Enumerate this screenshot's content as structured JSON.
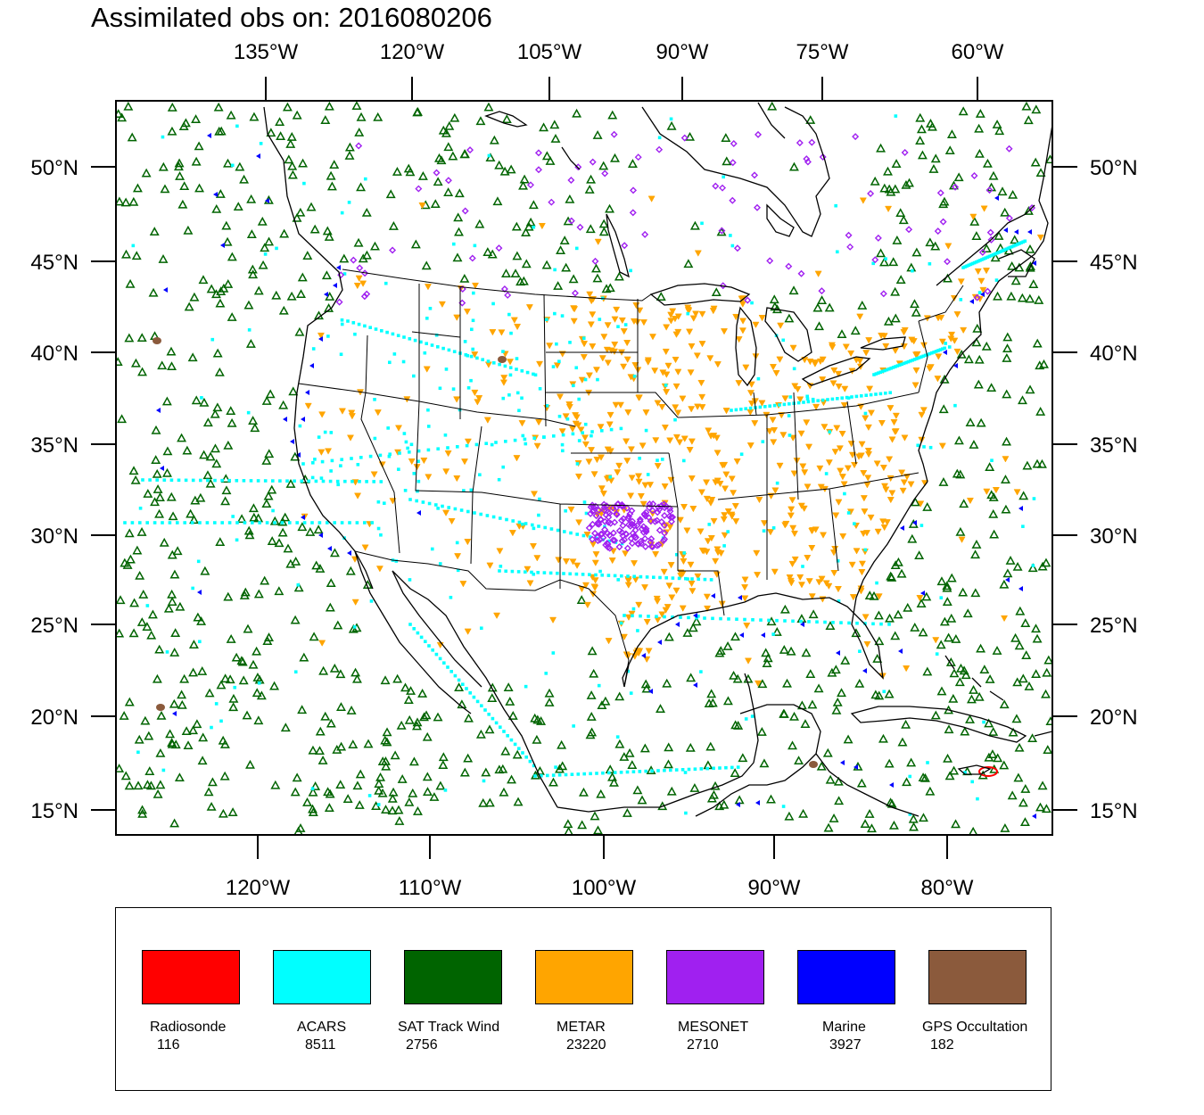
{
  "title": "Assimilated obs on: 2016080206",
  "top_axis_labels": [
    "135°W",
    "120°W",
    "105°W",
    "90°W",
    "75°W",
    "60°W"
  ],
  "bottom_axis_labels": [
    "120°W",
    "110°W",
    "100°W",
    "90°W",
    "80°W"
  ],
  "left_axis_labels": [
    "50°N",
    "45°N",
    "40°N",
    "35°N",
    "30°N",
    "25°N",
    "20°N",
    "15°N"
  ],
  "right_axis_labels": [
    "50°N",
    "45°N",
    "40°N",
    "35°N",
    "30°N",
    "25°N",
    "20°N",
    "15°N"
  ],
  "legend": [
    {
      "name": "Radiosonde",
      "count": "116",
      "color": "#ff0000"
    },
    {
      "name": "ACARS",
      "count": "8511",
      "color": "#00ffff"
    },
    {
      "name": "SAT Track Wind",
      "count": "2756",
      "color": "#006400"
    },
    {
      "name": "METAR",
      "count": "23220",
      "color": "#ffa500"
    },
    {
      "name": "MESONET",
      "count": "2710",
      "color": "#a020f0"
    },
    {
      "name": "Marine",
      "count": "3927",
      "color": "#0000ff"
    },
    {
      "name": "GPS Occultation",
      "count": "182",
      "color": "#8b5a3c"
    }
  ]
}
